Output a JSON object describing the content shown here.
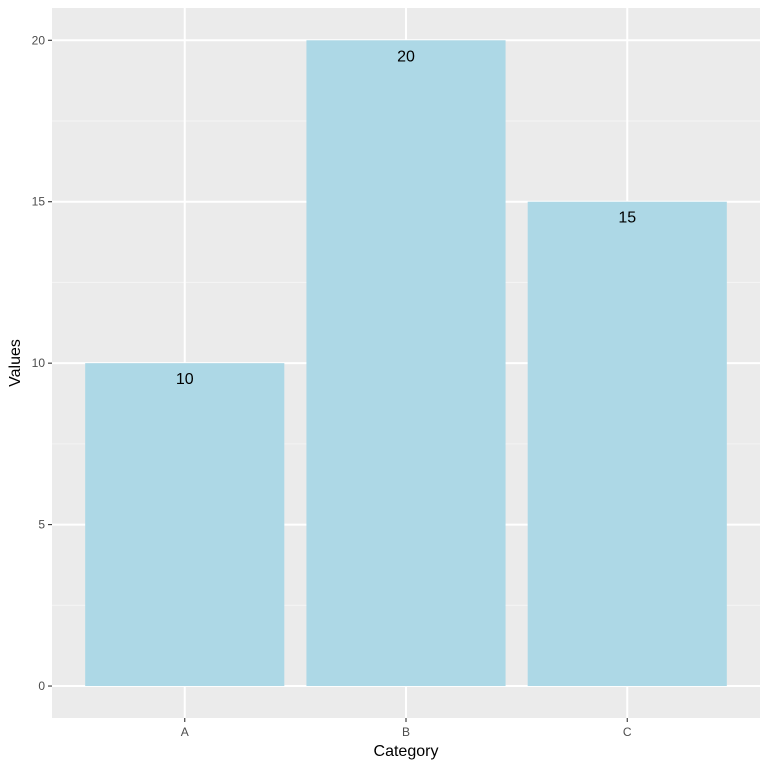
{
  "chart_data": {
    "type": "bar",
    "categories": [
      "A",
      "B",
      "C"
    ],
    "values": [
      10,
      20,
      15
    ],
    "data_labels": [
      "10",
      "20",
      "15"
    ],
    "xlabel": "Category",
    "ylabel": "Values",
    "ylim": [
      -0.99,
      21
    ],
    "yticks": [
      0,
      5,
      10,
      15,
      20
    ],
    "ytick_labels": [
      "0",
      "5",
      "10",
      "15",
      "20"
    ],
    "grid": true,
    "legend": "none"
  },
  "colors": {
    "panel_background": "#ebebeb",
    "grid_major": "#ffffff",
    "grid_minor": "#f4f4f4",
    "bar_fill": "#add8e6",
    "tick_mark": "#333333"
  }
}
